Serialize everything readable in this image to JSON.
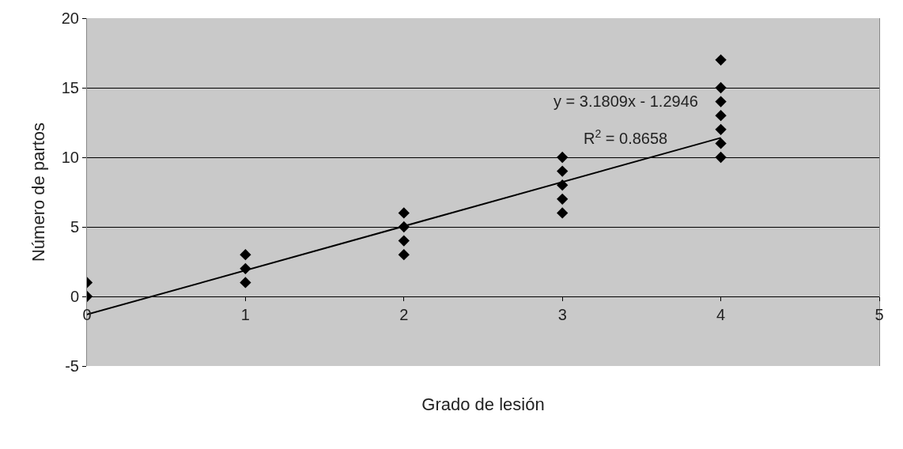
{
  "chart_data": {
    "type": "scatter",
    "xlabel": "Grado de lesión",
    "ylabel": "Número de partos",
    "series": [
      {
        "color": "#000000",
        "marker": "diamond",
        "x": [
          0,
          0,
          1,
          1,
          1,
          2,
          2,
          2,
          2,
          3,
          3,
          3,
          3,
          3,
          4,
          4,
          4,
          4,
          4,
          4,
          4
        ],
        "values": [
          0,
          1,
          1,
          2,
          3,
          3,
          4,
          5,
          6,
          6,
          7,
          8,
          9,
          10,
          10,
          11,
          12,
          13,
          14,
          15,
          17
        ]
      },
      {
        "type": "line",
        "color": "#000000",
        "marker": "none",
        "line_style": "solid",
        "x": [
          0,
          4
        ],
        "values": [
          -1.3,
          11.4
        ]
      }
    ],
    "annotations": [
      "y = 3.1809x - 1.2946",
      "R$^{2}$ = 0.8658"
    ],
    "xlim": [
      0,
      5
    ],
    "xticks": [
      0,
      1,
      2,
      3,
      4,
      5
    ],
    "ylim": [
      -5,
      20
    ],
    "yticks": [
      -5,
      0,
      5,
      10,
      15,
      20
    ],
    "grid": "y"
  }
}
